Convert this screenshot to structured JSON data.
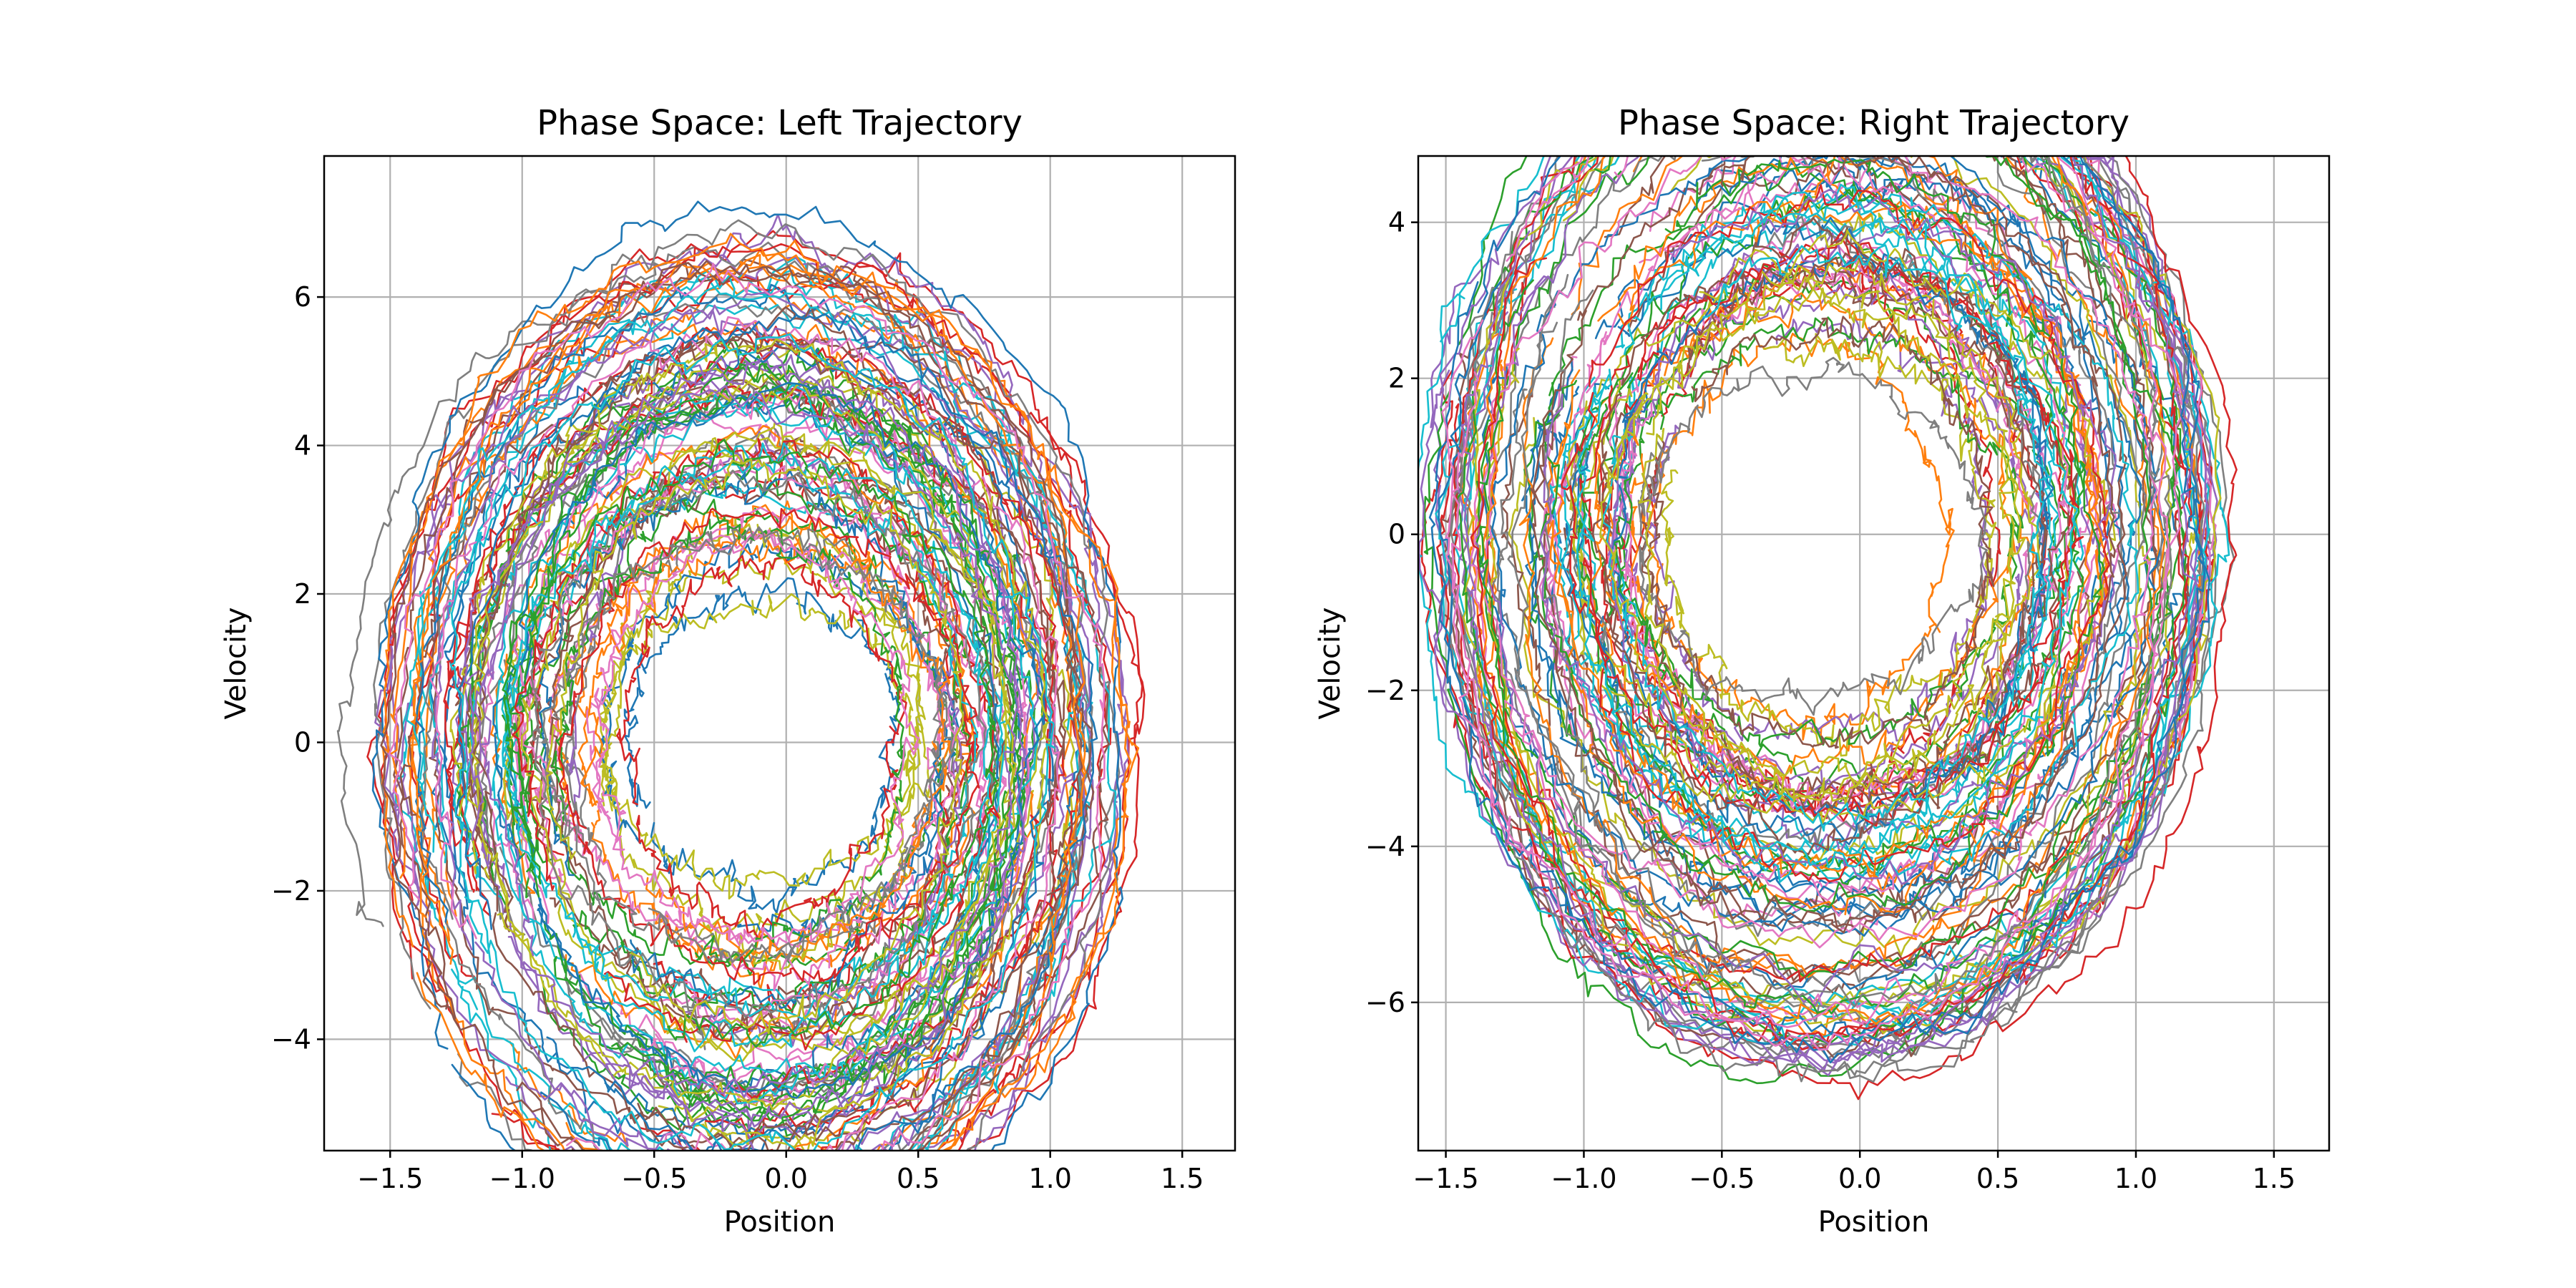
{
  "chart_data": [
    {
      "type": "line",
      "title": "Phase Space: Left Trajectory",
      "xlabel": "Position",
      "ylabel": "Velocity",
      "xlim": [
        -1.75,
        1.7
      ],
      "ylim": [
        -5.5,
        7.9
      ],
      "xticks": [
        -1.5,
        -1.0,
        -0.5,
        0.0,
        0.5,
        1.0,
        1.5
      ],
      "xtick_labels": [
        "−1.5",
        "−1.0",
        "−0.5",
        "0.0",
        "0.5",
        "1.0",
        "1.5"
      ],
      "yticks": [
        -4,
        -2,
        0,
        2,
        4,
        6
      ],
      "ytick_labels": [
        "−4",
        "−2",
        "0",
        "2",
        "4",
        "6"
      ],
      "grid": true,
      "legend": "none",
      "series_count": 100,
      "series_shape": "noisy arcs starting at position ≈ -1.6 to -0.7, arching over the top (velocity peak ≈ 2.5 to 7.3) and descending on the right (position ≈ 0.2 to 1.55)",
      "sample_trajectories": [
        {
          "color": "#1f77b4",
          "x": [
            -1.05,
            -1.35,
            -1.55,
            -1.55,
            -1.45,
            -1.3,
            -1.1,
            -1.0,
            -0.5,
            0.0,
            0.5,
            0.9,
            1.2,
            1.4,
            1.5,
            1.5,
            1.3,
            1.2
          ],
          "y": [
            -3.2,
            -3.4,
            -2.0,
            0.0,
            2.5,
            4.5,
            6.3,
            7.2,
            7.0,
            6.2,
            5.6,
            4.8,
            3.5,
            1.8,
            0.0,
            -2.0,
            -3.5,
            -4.1
          ]
        },
        {
          "color": "#ff7f0e",
          "x": [
            -1.3,
            -1.45,
            -1.6,
            -1.6,
            -1.5,
            -1.3,
            -1.0,
            -0.5,
            0.0,
            0.5,
            0.9,
            1.2,
            1.35,
            1.4,
            1.3,
            1.1
          ],
          "y": [
            -3.8,
            -3.0,
            -1.0,
            1.5,
            4.0,
            6.2,
            7.0,
            7.3,
            7.2,
            6.5,
            5.2,
            3.5,
            1.5,
            0.0,
            -2.0,
            -3.6
          ]
        },
        {
          "color": "#2ca02c",
          "x": [
            -0.7,
            -1.1,
            -1.4,
            -1.45,
            -1.35,
            -1.1,
            -0.6,
            0.0,
            0.4,
            0.9,
            1.25,
            1.5,
            1.5,
            1.4,
            1.25,
            1.1
          ],
          "y": [
            -2.8,
            -2.6,
            -1.0,
            1.0,
            3.5,
            6.0,
            6.8,
            7.0,
            6.6,
            5.8,
            4.5,
            3.0,
            0.0,
            -2.0,
            -3.8,
            -4.8
          ]
        }
      ]
    },
    {
      "type": "line",
      "title": "Phase Space: Right Trajectory",
      "xlabel": "Position",
      "ylabel": "Velocity",
      "xlim": [
        -1.6,
        1.7
      ],
      "ylim": [
        -7.9,
        4.85
      ],
      "xticks": [
        -1.5,
        -1.0,
        -0.5,
        0.0,
        0.5,
        1.0,
        1.5
      ],
      "xtick_labels": [
        "−1.5",
        "−1.0",
        "−0.5",
        "0.0",
        "0.5",
        "1.0",
        "1.5"
      ],
      "yticks": [
        -6,
        -4,
        -2,
        0,
        2,
        4
      ],
      "ytick_labels": [
        "−6",
        "−4",
        "−2",
        "0",
        "2",
        "4"
      ],
      "grid": true,
      "legend": "none",
      "series_count": 100,
      "series_shape": "noisy arcs starting at position ≈ -1.5 to 0.0, dipping below (velocity trough ≈ -1.5 to -7.3) and rising on the right (position ≈ 0.4 to 1.55)",
      "sample_trajectories": [
        {
          "color": "#d62728",
          "x": [
            -1.0,
            -1.25,
            -1.45,
            -1.45,
            -1.3,
            -1.05,
            -0.6,
            0.0,
            0.5,
            0.9,
            1.2,
            1.4,
            1.45,
            1.35,
            1.25
          ],
          "y": [
            3.7,
            3.0,
            1.5,
            -1.0,
            -3.5,
            -5.2,
            -6.3,
            -7.0,
            -6.8,
            -6.2,
            -5.0,
            -3.0,
            0.0,
            2.0,
            3.0
          ]
        },
        {
          "color": "#7f7f7f",
          "x": [
            -0.95,
            -1.2,
            -1.4,
            -1.45,
            -1.35,
            -1.1,
            -0.6,
            0.0,
            0.5,
            0.9,
            1.25,
            1.45,
            1.5,
            1.45,
            1.35,
            1.2
          ],
          "y": [
            4.25,
            3.5,
            1.5,
            -1.0,
            -3.5,
            -5.5,
            -6.8,
            -7.2,
            -7.0,
            -6.5,
            -5.0,
            -3.0,
            0.0,
            1.5,
            3.0,
            3.6
          ]
        },
        {
          "color": "#17becf",
          "x": [
            -0.6,
            -0.95,
            -1.3,
            -1.35,
            -1.2,
            -0.9,
            -0.4,
            0.1,
            0.55,
            0.9,
            1.2,
            1.35,
            1.3,
            1.15
          ],
          "y": [
            1.5,
            1.2,
            -0.5,
            -2.5,
            -4.5,
            -5.8,
            -6.5,
            -6.8,
            -7.2,
            -6.5,
            -5.0,
            -2.5,
            0.5,
            3.0
          ]
        }
      ]
    }
  ]
}
